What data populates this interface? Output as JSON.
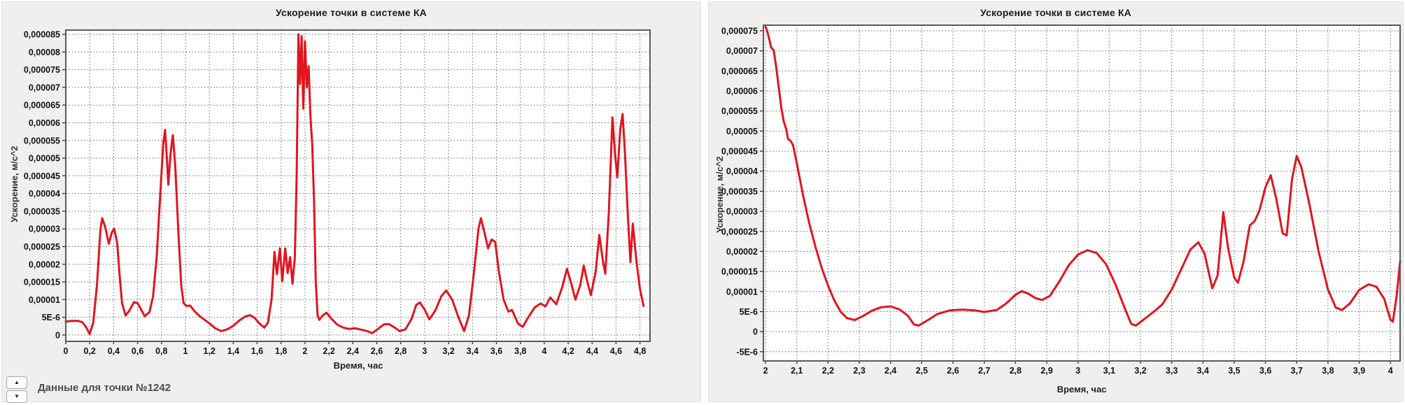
{
  "page": {
    "background": "#ffffff"
  },
  "footer": {
    "caption": "Данные для точки №1242",
    "spin_up_icon": "▲",
    "spin_down_icon": "▼"
  },
  "chart_data": [
    {
      "type": "line",
      "title": "Ускорение точки в системе КА",
      "xlabel": "Время, час",
      "ylabel": "Ускорение, м/с^2",
      "legend": "none",
      "grid": "dotted",
      "line_color": "#e2141e",
      "plot_bg": "#ffffff",
      "panel_bg": "#f0efee",
      "grid_color": "#54565a",
      "y_unit": "1e-6 m/s^2",
      "xlim": [
        0,
        4.884
      ],
      "ylim": [
        -1.8,
        86.2
      ],
      "x_ticks": [
        0,
        0.2,
        0.4,
        0.6,
        0.8,
        1,
        1.2,
        1.4,
        1.6,
        1.8,
        2,
        2.2,
        2.4,
        2.6,
        2.8,
        3,
        3.2,
        3.4,
        3.6,
        3.8,
        4,
        4.2,
        4.4,
        4.6,
        4.8
      ],
      "x_tick_labels": [
        "0",
        "0,2",
        "0,4",
        "0,6",
        "0,8",
        "1",
        "1,2",
        "1,4",
        "1,6",
        "1,8",
        "2",
        "2,2",
        "2,4",
        "2,6",
        "2,8",
        "3",
        "3,2",
        "3,4",
        "3,6",
        "3,8",
        "4",
        "4,2",
        "4,4",
        "4,6",
        "4,8"
      ],
      "y_ticks": [
        0,
        5,
        10,
        15,
        20,
        25,
        30,
        35,
        40,
        45,
        50,
        55,
        60,
        65,
        70,
        75,
        80,
        85
      ],
      "y_tick_labels": [
        "0",
        "5E-6",
        "0,00001",
        "0,000015",
        "0,00002",
        "0,000025",
        "0,00003",
        "0,000035",
        "0,00004",
        "0,000045",
        "0,00005",
        "0,000055",
        "0,00006",
        "0,000065",
        "0,00007",
        "0,000075",
        "0,00008",
        "0,000085"
      ],
      "points": [
        [
          0,
          3.8
        ],
        [
          0.05,
          4.0
        ],
        [
          0.1,
          4.0
        ],
        [
          0.14,
          3.6
        ],
        [
          0.17,
          2.2
        ],
        [
          0.2,
          0.3
        ],
        [
          0.23,
          3.5
        ],
        [
          0.26,
          14
        ],
        [
          0.29,
          30
        ],
        [
          0.305,
          33
        ],
        [
          0.33,
          30.5
        ],
        [
          0.36,
          25.8
        ],
        [
          0.385,
          29
        ],
        [
          0.405,
          30
        ],
        [
          0.43,
          26
        ],
        [
          0.45,
          17
        ],
        [
          0.47,
          9
        ],
        [
          0.5,
          5.5
        ],
        [
          0.53,
          6.8
        ],
        [
          0.57,
          9.3
        ],
        [
          0.6,
          9.0
        ],
        [
          0.63,
          7.2
        ],
        [
          0.66,
          5.3
        ],
        [
          0.7,
          6.5
        ],
        [
          0.73,
          11
        ],
        [
          0.76,
          22
        ],
        [
          0.79,
          40
        ],
        [
          0.815,
          54
        ],
        [
          0.83,
          58
        ],
        [
          0.845,
          50
        ],
        [
          0.857,
          42.5
        ],
        [
          0.875,
          51
        ],
        [
          0.895,
          56.5
        ],
        [
          0.915,
          48
        ],
        [
          0.94,
          30
        ],
        [
          0.965,
          14
        ],
        [
          0.985,
          9
        ],
        [
          1.01,
          8.2
        ],
        [
          1.04,
          8.3
        ],
        [
          1.08,
          6.6
        ],
        [
          1.12,
          5.3
        ],
        [
          1.16,
          4.3
        ],
        [
          1.2,
          3.3
        ],
        [
          1.25,
          1.9
        ],
        [
          1.3,
          1.1
        ],
        [
          1.35,
          1.6
        ],
        [
          1.4,
          2.6
        ],
        [
          1.45,
          4.1
        ],
        [
          1.5,
          5.2
        ],
        [
          1.54,
          5.6
        ],
        [
          1.58,
          4.8
        ],
        [
          1.62,
          3.2
        ],
        [
          1.66,
          2.1
        ],
        [
          1.69,
          3.5
        ],
        [
          1.72,
          10
        ],
        [
          1.745,
          23.5
        ],
        [
          1.765,
          17.2
        ],
        [
          1.79,
          24.5
        ],
        [
          1.81,
          15.2
        ],
        [
          1.835,
          24.5
        ],
        [
          1.855,
          17.5
        ],
        [
          1.875,
          22
        ],
        [
          1.895,
          14.5
        ],
        [
          1.915,
          22
        ],
        [
          1.93,
          45
        ],
        [
          1.945,
          85
        ],
        [
          1.958,
          71
        ],
        [
          1.972,
          84.5
        ],
        [
          1.985,
          64
        ],
        [
          2.0,
          83
        ],
        [
          2.015,
          70
        ],
        [
          2.03,
          76
        ],
        [
          2.045,
          62
        ],
        [
          2.06,
          54
        ],
        [
          2.075,
          38
        ],
        [
          2.09,
          15
        ],
        [
          2.105,
          5.5
        ],
        [
          2.12,
          4.3
        ],
        [
          2.15,
          5.6
        ],
        [
          2.18,
          6.3
        ],
        [
          2.22,
          4.6
        ],
        [
          2.27,
          2.9
        ],
        [
          2.32,
          2.1
        ],
        [
          2.37,
          1.7
        ],
        [
          2.42,
          1.9
        ],
        [
          2.47,
          1.5
        ],
        [
          2.52,
          1.1
        ],
        [
          2.56,
          0.5
        ],
        [
          2.61,
          1.7
        ],
        [
          2.66,
          3.0
        ],
        [
          2.7,
          3.1
        ],
        [
          2.75,
          2.1
        ],
        [
          2.79,
          1.1
        ],
        [
          2.84,
          1.6
        ],
        [
          2.89,
          4.5
        ],
        [
          2.93,
          8.5
        ],
        [
          2.96,
          9.2
        ],
        [
          3.0,
          7.2
        ],
        [
          3.04,
          4.4
        ],
        [
          3.09,
          7.0
        ],
        [
          3.14,
          11.0
        ],
        [
          3.18,
          12.6
        ],
        [
          3.23,
          10.0
        ],
        [
          3.28,
          5.2
        ],
        [
          3.33,
          1.1
        ],
        [
          3.37,
          5.5
        ],
        [
          3.41,
          17
        ],
        [
          3.45,
          30
        ],
        [
          3.47,
          33
        ],
        [
          3.5,
          29
        ],
        [
          3.53,
          24.5
        ],
        [
          3.56,
          27
        ],
        [
          3.59,
          26.3
        ],
        [
          3.62,
          18
        ],
        [
          3.66,
          10
        ],
        [
          3.7,
          6.6
        ],
        [
          3.73,
          7.1
        ],
        [
          3.78,
          3.2
        ],
        [
          3.82,
          2.3
        ],
        [
          3.87,
          5.2
        ],
        [
          3.92,
          7.8
        ],
        [
          3.97,
          8.9
        ],
        [
          4.01,
          8.1
        ],
        [
          4.05,
          10.6
        ],
        [
          4.1,
          8.7
        ],
        [
          4.15,
          13.5
        ],
        [
          4.19,
          18.7
        ],
        [
          4.23,
          14
        ],
        [
          4.26,
          10
        ],
        [
          4.3,
          14
        ],
        [
          4.33,
          19.6
        ],
        [
          4.36,
          15
        ],
        [
          4.39,
          11.3
        ],
        [
          4.43,
          18
        ],
        [
          4.46,
          28.3
        ],
        [
          4.49,
          21
        ],
        [
          4.51,
          17.3
        ],
        [
          4.54,
          35
        ],
        [
          4.57,
          61.5
        ],
        [
          4.59,
          52
        ],
        [
          4.61,
          44.6
        ],
        [
          4.635,
          58
        ],
        [
          4.655,
          62.5
        ],
        [
          4.675,
          51
        ],
        [
          4.7,
          33
        ],
        [
          4.72,
          20.6
        ],
        [
          4.74,
          31.5
        ],
        [
          4.77,
          21
        ],
        [
          4.8,
          13
        ],
        [
          4.83,
          8.2
        ]
      ]
    },
    {
      "type": "line",
      "title": "Ускорение точки в системе КА",
      "xlabel": "Время, час",
      "ylabel": "Ускорение, м/с^2",
      "legend": "none",
      "grid": "dotted",
      "line_color": "#e2141e",
      "plot_bg": "#ffffff",
      "panel_bg": "#f0efee",
      "grid_color": "#54565a",
      "y_unit": "1e-6 m/s^2",
      "xlim": [
        1.993,
        4.031
      ],
      "ylim": [
        -7.3,
        76.4
      ],
      "x_ticks": [
        2,
        2.1,
        2.2,
        2.3,
        2.4,
        2.5,
        2.6,
        2.7,
        2.8,
        2.9,
        3,
        3.1,
        3.2,
        3.3,
        3.4,
        3.5,
        3.6,
        3.7,
        3.8,
        3.9,
        4
      ],
      "x_tick_labels": [
        "2",
        "2,1",
        "2,2",
        "2,3",
        "2,4",
        "2,5",
        "2,6",
        "2,7",
        "2,8",
        "2,9",
        "3",
        "3,1",
        "3,2",
        "3,3",
        "3,4",
        "3,5",
        "3,6",
        "3,7",
        "3,8",
        "3,9",
        "4"
      ],
      "y_ticks": [
        -5,
        0,
        5,
        10,
        15,
        20,
        25,
        30,
        35,
        40,
        45,
        50,
        55,
        60,
        65,
        70,
        75
      ],
      "y_tick_labels": [
        "-5E-6",
        "0",
        "5E-6",
        "0,00001",
        "0,000015",
        "0,00002",
        "0,000025",
        "0,00003",
        "0,000035",
        "0,00004",
        "0,000045",
        "0,00005",
        "0,000055",
        "0,00006",
        "0,000065",
        "0,00007",
        "0,000075"
      ],
      "points": [
        [
          2.0,
          76
        ],
        [
          2.005,
          75
        ],
        [
          2.01,
          73.5
        ],
        [
          2.018,
          70.8
        ],
        [
          2.026,
          70.2
        ],
        [
          2.034,
          66
        ],
        [
          2.042,
          61
        ],
        [
          2.05,
          56
        ],
        [
          2.058,
          52.5
        ],
        [
          2.066,
          50.5
        ],
        [
          2.072,
          48.0
        ],
        [
          2.08,
          47.6
        ],
        [
          2.088,
          46.5
        ],
        [
          2.1,
          42
        ],
        [
          2.12,
          34
        ],
        [
          2.14,
          27
        ],
        [
          2.16,
          21
        ],
        [
          2.18,
          15.8
        ],
        [
          2.2,
          11.5
        ],
        [
          2.22,
          7.8
        ],
        [
          2.24,
          5.0
        ],
        [
          2.26,
          3.4
        ],
        [
          2.285,
          2.9
        ],
        [
          2.31,
          3.8
        ],
        [
          2.34,
          5.2
        ],
        [
          2.37,
          6.1
        ],
        [
          2.4,
          6.3
        ],
        [
          2.43,
          5.5
        ],
        [
          2.455,
          4.0
        ],
        [
          2.475,
          1.8
        ],
        [
          2.49,
          1.5
        ],
        [
          2.52,
          2.9
        ],
        [
          2.55,
          4.4
        ],
        [
          2.59,
          5.3
        ],
        [
          2.63,
          5.5
        ],
        [
          2.67,
          5.3
        ],
        [
          2.7,
          4.9
        ],
        [
          2.74,
          5.4
        ],
        [
          2.77,
          7.0
        ],
        [
          2.8,
          9.2
        ],
        [
          2.82,
          10.1
        ],
        [
          2.84,
          9.5
        ],
        [
          2.865,
          8.3
        ],
        [
          2.885,
          7.9
        ],
        [
          2.91,
          8.9
        ],
        [
          2.94,
          12.5
        ],
        [
          2.97,
          16.5
        ],
        [
          3.0,
          19.2
        ],
        [
          3.03,
          20.3
        ],
        [
          3.06,
          19.6
        ],
        [
          3.09,
          16.8
        ],
        [
          3.12,
          11.8
        ],
        [
          3.15,
          5.8
        ],
        [
          3.17,
          2.0
        ],
        [
          3.185,
          1.5
        ],
        [
          3.21,
          3.0
        ],
        [
          3.24,
          4.8
        ],
        [
          3.27,
          6.8
        ],
        [
          3.3,
          10.5
        ],
        [
          3.33,
          15.5
        ],
        [
          3.36,
          20.5
        ],
        [
          3.385,
          22.3
        ],
        [
          3.405,
          19.5
        ],
        [
          3.43,
          10.8
        ],
        [
          3.447,
          14
        ],
        [
          3.465,
          29.8
        ],
        [
          3.48,
          21
        ],
        [
          3.5,
          13.5
        ],
        [
          3.512,
          12.2
        ],
        [
          3.53,
          17.5
        ],
        [
          3.55,
          26.5
        ],
        [
          3.565,
          27.5
        ],
        [
          3.58,
          30
        ],
        [
          3.6,
          36
        ],
        [
          3.617,
          39
        ],
        [
          3.635,
          33
        ],
        [
          3.655,
          24.5
        ],
        [
          3.668,
          24.0
        ],
        [
          3.685,
          38
        ],
        [
          3.7,
          43.8
        ],
        [
          3.715,
          41
        ],
        [
          3.74,
          32
        ],
        [
          3.77,
          20
        ],
        [
          3.8,
          10.5
        ],
        [
          3.825,
          6.0
        ],
        [
          3.845,
          5.4
        ],
        [
          3.87,
          7.0
        ],
        [
          3.9,
          10.4
        ],
        [
          3.93,
          11.8
        ],
        [
          3.955,
          11.2
        ],
        [
          3.98,
          8.2
        ],
        [
          4.0,
          3.0
        ],
        [
          4.008,
          2.5
        ],
        [
          4.02,
          9
        ],
        [
          4.031,
          17.5
        ]
      ]
    }
  ]
}
